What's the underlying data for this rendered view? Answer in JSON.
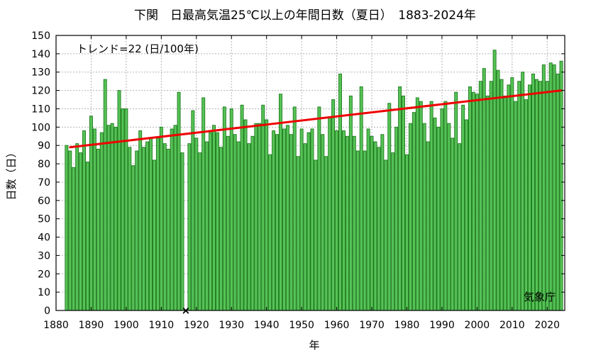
{
  "chart_data": {
    "type": "bar",
    "title": "下関　日最高気温25℃以上の年間日数（夏日）　1883-2024年",
    "xlabel": "年",
    "ylabel": "日数（日）",
    "trend_label": "トレンド=22 (日/100年)",
    "source_label": "気象庁",
    "xlim": [
      1880,
      2025
    ],
    "ylim": [
      0,
      150
    ],
    "x_ticks": [
      1880,
      1890,
      1900,
      1910,
      1920,
      1930,
      1940,
      1950,
      1960,
      1970,
      1980,
      1990,
      2000,
      2010,
      2020
    ],
    "y_ticks": [
      0,
      10,
      20,
      30,
      40,
      50,
      60,
      70,
      80,
      90,
      100,
      110,
      120,
      130,
      140,
      150
    ],
    "missing_years": [
      1917
    ],
    "missing_marker": "×",
    "trend": {
      "start": [
        1884,
        89
      ],
      "end": [
        2024,
        120
      ]
    },
    "bar_color": "#56c356",
    "bar_edge_color": "#1e7a1e",
    "trend_color": "#ee0000",
    "series": [
      {
        "x": [
          1883,
          1884,
          1885,
          1886,
          1887,
          1888,
          1889,
          1890,
          1891,
          1892,
          1893,
          1894,
          1895,
          1896,
          1897,
          1898,
          1899,
          1900,
          1901,
          1902,
          1903,
          1904,
          1905,
          1906,
          1907,
          1908,
          1909,
          1910,
          1911,
          1912,
          1913,
          1914,
          1915,
          1916,
          1917,
          1918,
          1919,
          1920,
          1921,
          1922,
          1923,
          1924,
          1925,
          1926,
          1927,
          1928,
          1929,
          1930,
          1931,
          1932,
          1933,
          1934,
          1935,
          1936,
          1937,
          1938,
          1939,
          1940,
          1941,
          1942,
          1943,
          1944,
          1945,
          1946,
          1947,
          1948,
          1949,
          1950,
          1951,
          1952,
          1953,
          1954,
          1955,
          1956,
          1957,
          1958,
          1959,
          1960,
          1961,
          1962,
          1963,
          1964,
          1965,
          1966,
          1967,
          1968,
          1969,
          1970,
          1971,
          1972,
          1973,
          1974,
          1975,
          1976,
          1977,
          1978,
          1979,
          1980,
          1981,
          1982,
          1983,
          1984,
          1985,
          1986,
          1987,
          1988,
          1989,
          1990,
          1991,
          1992,
          1993,
          1994,
          1995,
          1996,
          1997,
          1998,
          1999,
          2000,
          2001,
          2002,
          2003,
          2004,
          2005,
          2006,
          2007,
          2008,
          2009,
          2010,
          2011,
          2012,
          2013,
          2014,
          2015,
          2016,
          2017,
          2018,
          2019,
          2020,
          2021,
          2022,
          2023,
          2024
        ],
        "values": [
          90,
          87,
          78,
          91,
          86,
          98,
          81,
          106,
          99,
          88,
          97,
          126,
          101,
          102,
          100,
          120,
          110,
          110,
          89,
          79,
          87,
          98,
          89,
          92,
          94,
          82,
          94,
          100,
          91,
          88,
          99,
          101,
          119,
          86,
          null,
          91,
          109,
          94,
          86,
          116,
          92,
          97,
          101,
          97,
          89,
          111,
          95,
          110,
          96,
          92,
          112,
          104,
          91,
          95,
          102,
          102,
          112,
          104,
          85,
          98,
          96,
          118,
          99,
          101,
          96,
          111,
          84,
          99,
          91,
          97,
          99,
          82,
          111,
          96,
          84,
          105,
          115,
          98,
          129,
          98,
          95,
          117,
          95,
          87,
          122,
          87,
          99,
          95,
          92,
          89,
          96,
          82,
          113,
          86,
          100,
          122,
          117,
          85,
          102,
          108,
          116,
          114,
          102,
          92,
          114,
          105,
          100,
          110,
          114,
          102,
          94,
          119,
          91,
          112,
          104,
          122,
          119,
          118,
          125,
          132,
          117,
          125,
          142,
          131,
          126,
          117,
          123,
          127,
          114,
          125,
          130,
          115,
          123,
          129,
          126,
          125,
          134,
          125,
          135,
          134,
          129,
          136
        ]
      }
    ]
  }
}
